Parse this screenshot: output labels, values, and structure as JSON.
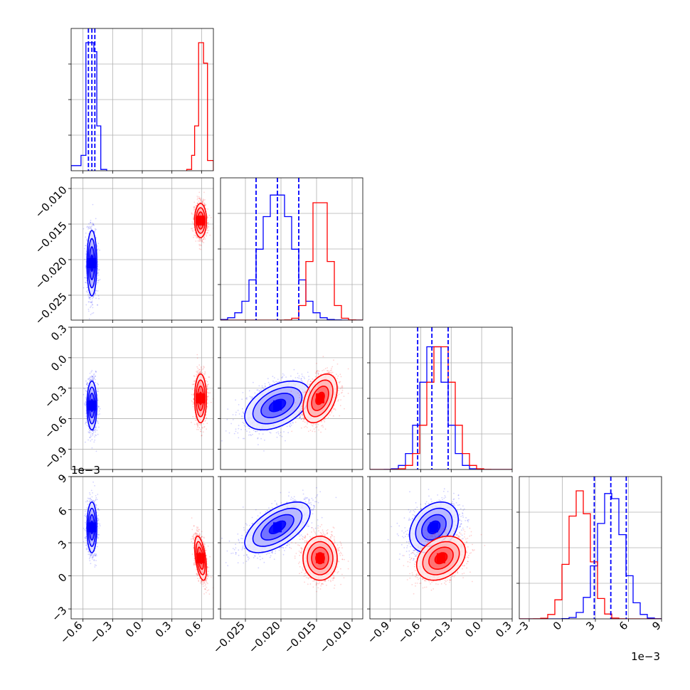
{
  "chart_data": {
    "type": "corner",
    "parameters": [
      {
        "index": 0,
        "range": [
          -0.72,
          0.72
        ],
        "ticks": [
          -0.6,
          -0.3,
          0.0,
          0.3,
          0.6
        ],
        "tick_labels": [
          "−0.6",
          "−0.3",
          "0.0",
          "0.3",
          "0.6"
        ],
        "offset_label": ""
      },
      {
        "index": 1,
        "range": [
          -0.0285,
          -0.0085
        ],
        "ticks": [
          -0.025,
          -0.02,
          -0.015,
          -0.01
        ],
        "tick_labels": [
          "−0.025",
          "−0.020",
          "−0.015",
          "−0.010"
        ],
        "offset_label": ""
      },
      {
        "index": 2,
        "range": [
          -1.1,
          0.3
        ],
        "ticks": [
          -0.9,
          -0.6,
          -0.3,
          0.0,
          0.3
        ],
        "tick_labels": [
          "−0.9",
          "−0.6",
          "−0.3",
          "0.0",
          "0.3"
        ],
        "offset_label": ""
      },
      {
        "index": 3,
        "range": [
          -3.9,
          9.0
        ],
        "ticks": [
          -3,
          0,
          3,
          6,
          9
        ],
        "tick_labels": [
          "−3",
          "0",
          "3",
          "6",
          "9"
        ],
        "offset_label": "1e−3"
      }
    ],
    "series": [
      {
        "color": "#0000ff",
        "mean": [
          -0.51,
          -0.0205,
          -0.47,
          4.4
        ],
        "std": [
          0.025,
          0.0023,
          0.12,
          1.15
        ],
        "corr": {
          "0-1": 0.0,
          "0-2": 0.0,
          "0-3": 0.0,
          "1-2": 0.45,
          "1-3": 0.6,
          "2-3": 0.3
        },
        "quantile_lines": [
          [
            -0.545,
            -0.51,
            -0.48
          ],
          [
            -0.0235,
            -0.0205,
            -0.0175
          ],
          [
            -0.63,
            -0.49,
            -0.33
          ],
          [
            2.9,
            4.4,
            5.8
          ]
        ]
      },
      {
        "color": "#ff0000",
        "mean": [
          0.59,
          -0.0145,
          -0.4,
          1.6
        ],
        "std": [
          0.03,
          0.0012,
          0.12,
          1.0
        ],
        "corr": {
          "0-1": 0.0,
          "0-2": 0.0,
          "0-3": -0.5,
          "1-2": 0.4,
          "1-3": 0.0,
          "2-3": 0.3
        },
        "quantile_lines": []
      }
    ],
    "histogram_peaks": {
      "0": {
        "blue_bins": [
          [
            -0.72,
            -0.62,
            0.04
          ],
          [
            -0.62,
            -0.57,
            0.12
          ],
          [
            -0.57,
            -0.55,
            1.0
          ],
          [
            -0.55,
            -0.52,
            1.0
          ],
          [
            -0.52,
            -0.49,
            1.0
          ],
          [
            -0.49,
            -0.46,
            0.93
          ],
          [
            -0.46,
            -0.42,
            0.35
          ],
          [
            -0.42,
            -0.36,
            0.01
          ]
        ],
        "red_bins": [
          [
            0.45,
            0.5,
            0.01
          ],
          [
            0.5,
            0.53,
            0.12
          ],
          [
            0.53,
            0.57,
            0.35
          ],
          [
            0.57,
            0.62,
            1.0
          ],
          [
            0.62,
            0.66,
            0.84
          ],
          [
            0.66,
            0.72,
            0.08
          ]
        ]
      }
    },
    "grid": true,
    "legend": "none"
  }
}
